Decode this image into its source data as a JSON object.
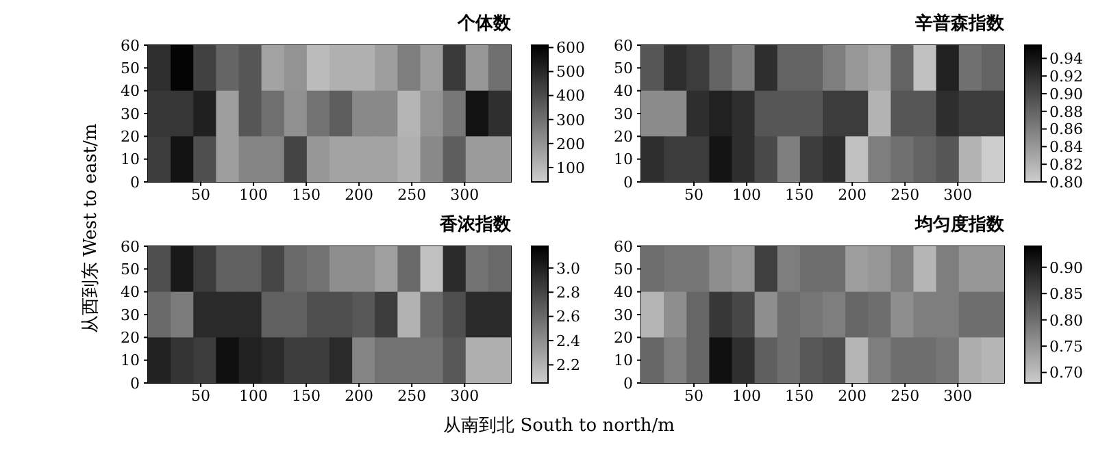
{
  "chart_data": [
    {
      "type": "heatmap",
      "title": "个体数",
      "x": [
        10.75,
        32.25,
        53.75,
        75.25,
        96.75,
        118.25,
        139.75,
        161.25,
        182.75,
        204.25,
        225.75,
        247.25,
        268.75,
        290.25,
        311.75,
        333.25
      ],
      "xlim": [
        0,
        344
      ],
      "xticks": [
        50,
        100,
        150,
        200,
        250,
        300
      ],
      "ylim": [
        0,
        60
      ],
      "yticks": [
        0,
        10,
        20,
        30,
        40,
        50,
        60
      ],
      "cells": [
        [
          480,
          600,
          430,
          330,
          370,
          160,
          200,
          90,
          120,
          120,
          170,
          260,
          170,
          450,
          190,
          300
        ],
        [
          460,
          460,
          520,
          170,
          370,
          300,
          210,
          290,
          350,
          230,
          230,
          110,
          200,
          280,
          560,
          480
        ],
        [
          440,
          560,
          390,
          170,
          240,
          240,
          420,
          190,
          160,
          160,
          160,
          120,
          230,
          350,
          180,
          180
        ]
      ],
      "clim": [
        40,
        610
      ],
      "cticks": [
        100,
        200,
        300,
        400,
        500,
        600
      ]
    },
    {
      "type": "heatmap",
      "title": "辛普森指数",
      "x": [
        10.75,
        32.25,
        53.75,
        75.25,
        96.75,
        118.25,
        139.75,
        161.25,
        182.75,
        204.25,
        225.75,
        247.25,
        268.75,
        290.25,
        311.75,
        333.25
      ],
      "xlim": [
        0,
        344
      ],
      "xticks": [
        50,
        100,
        150,
        200,
        250,
        300
      ],
      "ylim": [
        0,
        60
      ],
      "yticks": [
        0,
        10,
        20,
        30,
        40,
        50,
        60
      ],
      "cells": [
        [
          0.89,
          0.92,
          0.91,
          0.88,
          0.86,
          0.92,
          0.88,
          0.88,
          0.86,
          0.84,
          0.83,
          0.88,
          0.81,
          0.93,
          0.87,
          0.88
        ],
        [
          0.85,
          0.85,
          0.92,
          0.93,
          0.92,
          0.89,
          0.89,
          0.89,
          0.91,
          0.91,
          0.82,
          0.89,
          0.89,
          0.92,
          0.91,
          0.91
        ],
        [
          0.92,
          0.91,
          0.91,
          0.94,
          0.92,
          0.9,
          0.86,
          0.91,
          0.92,
          0.81,
          0.86,
          0.87,
          0.88,
          0.89,
          0.82,
          0.8
        ]
      ],
      "clim": [
        0.8,
        0.955
      ],
      "cticks": [
        {
          "value": 0.8,
          "label": "0.80"
        },
        0.82,
        0.84,
        0.86,
        0.88,
        {
          "value": 0.9,
          "label": "0.90"
        },
        0.92,
        0.94
      ]
    },
    {
      "type": "heatmap",
      "title": "香浓指数",
      "xlabel": "从南到北 South to north/m",
      "ylabel": "从西到东 West to east/m",
      "x": [
        10.75,
        32.25,
        53.75,
        75.25,
        96.75,
        118.25,
        139.75,
        161.25,
        182.75,
        204.25,
        225.75,
        247.25,
        268.75,
        290.25,
        311.75,
        333.25
      ],
      "xlim": [
        0,
        344
      ],
      "xticks": [
        50,
        100,
        150,
        200,
        250,
        300
      ],
      "ylim": [
        0,
        60
      ],
      "yticks": [
        0,
        10,
        20,
        30,
        40,
        50,
        60
      ],
      "cells": [
        [
          2.75,
          3.05,
          2.85,
          2.65,
          2.65,
          2.8,
          2.6,
          2.55,
          2.4,
          2.4,
          2.3,
          2.6,
          2.12,
          2.95,
          2.55,
          2.6
        ],
        [
          2.6,
          2.5,
          2.95,
          2.95,
          2.95,
          2.65,
          2.65,
          2.75,
          2.75,
          2.7,
          2.85,
          2.2,
          2.6,
          2.75,
          2.95,
          2.95
        ],
        [
          3.0,
          2.9,
          2.85,
          3.1,
          3.0,
          2.95,
          2.85,
          2.85,
          2.95,
          2.45,
          2.55,
          2.55,
          2.55,
          2.7,
          2.22,
          2.22
        ]
      ],
      "clim": [
        2.05,
        3.18
      ],
      "cticks": [
        2.2,
        2.4,
        2.6,
        2.8,
        {
          "value": 3,
          "label": "3.0"
        }
      ]
    },
    {
      "type": "heatmap",
      "title": "均匀度指数",
      "x": [
        10.75,
        32.25,
        53.75,
        75.25,
        96.75,
        118.25,
        139.75,
        161.25,
        182.75,
        204.25,
        225.75,
        247.25,
        268.75,
        290.25,
        311.75,
        333.25
      ],
      "xlim": [
        0,
        344
      ],
      "xticks": [
        50,
        100,
        150,
        200,
        250,
        300
      ],
      "ylim": [
        0,
        60
      ],
      "yticks": [
        0,
        10,
        20,
        30,
        40,
        50,
        60
      ],
      "cells": [
        [
          0.8,
          0.79,
          0.79,
          0.76,
          0.75,
          0.86,
          0.78,
          0.8,
          0.8,
          0.74,
          0.75,
          0.78,
          0.71,
          0.78,
          0.75,
          0.75
        ],
        [
          0.71,
          0.76,
          0.81,
          0.87,
          0.85,
          0.76,
          0.8,
          0.79,
          0.78,
          0.81,
          0.8,
          0.76,
          0.78,
          0.78,
          0.8,
          0.8
        ],
        [
          0.81,
          0.78,
          0.81,
          0.92,
          0.88,
          0.82,
          0.8,
          0.83,
          0.84,
          0.71,
          0.78,
          0.8,
          0.8,
          0.79,
          0.72,
          0.71
        ]
      ],
      "clim": [
        0.68,
        0.94
      ],
      "cticks": [
        {
          "value": 0.7,
          "label": "0.70"
        },
        0.75,
        {
          "value": 0.8,
          "label": "0.80"
        },
        0.85,
        {
          "value": 0.9,
          "label": "0.90"
        }
      ]
    }
  ]
}
